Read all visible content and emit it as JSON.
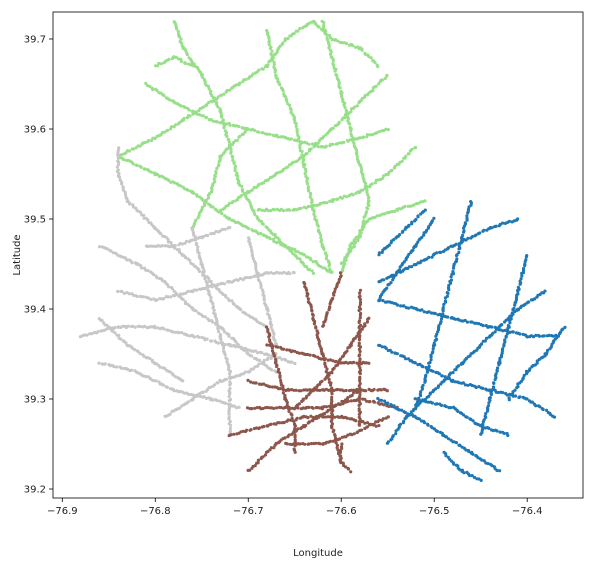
{
  "chart_data": {
    "type": "scatter",
    "title": "",
    "xlabel": "Longitude",
    "ylabel": "Latitude",
    "xlim": [
      -76.91,
      -76.34
    ],
    "ylim": [
      39.19,
      39.73
    ],
    "xticks": [
      -76.9,
      -76.8,
      -76.7,
      -76.6,
      -76.5,
      -76.4
    ],
    "xtick_labels": [
      "−76.9",
      "−76.8",
      "−76.7",
      "−76.6",
      "−76.5",
      "−76.4"
    ],
    "yticks": [
      39.2,
      39.3,
      39.4,
      39.5,
      39.6,
      39.7
    ],
    "ytick_labels": [
      "39.2",
      "39.3",
      "39.4",
      "39.5",
      "39.6",
      "39.7"
    ],
    "grid": false,
    "legend": "none",
    "series": [
      {
        "color": "#98df8a",
        "segments": [
          [
            [
              -76.84,
              39.57
            ],
            [
              -76.8,
              39.55
            ],
            [
              -76.76,
              39.53
            ],
            [
              -76.72,
              39.5
            ],
            [
              -76.68,
              39.48
            ],
            [
              -76.64,
              39.46
            ],
            [
              -76.61,
              39.44
            ]
          ],
          [
            [
              -76.84,
              39.57
            ],
            [
              -76.8,
              39.59
            ],
            [
              -76.77,
              39.61
            ],
            [
              -76.74,
              39.63
            ],
            [
              -76.71,
              39.65
            ],
            [
              -76.68,
              39.67
            ],
            [
              -76.66,
              39.7
            ],
            [
              -76.63,
              39.72
            ]
          ],
          [
            [
              -76.78,
              39.72
            ],
            [
              -76.77,
              39.69
            ],
            [
              -76.75,
              39.66
            ],
            [
              -76.73,
              39.62
            ],
            [
              -76.72,
              39.58
            ],
            [
              -76.71,
              39.54
            ],
            [
              -76.69,
              39.5
            ],
            [
              -76.66,
              39.47
            ],
            [
              -76.63,
              39.44
            ]
          ],
          [
            [
              -76.62,
              39.72
            ],
            [
              -76.61,
              39.68
            ],
            [
              -76.6,
              39.64
            ],
            [
              -76.59,
              39.6
            ],
            [
              -76.58,
              39.56
            ],
            [
              -76.57,
              39.52
            ],
            [
              -76.58,
              39.48
            ],
            [
              -76.6,
              39.45
            ]
          ],
          [
            [
              -76.68,
              39.71
            ],
            [
              -76.67,
              39.66
            ],
            [
              -76.65,
              39.61
            ],
            [
              -76.64,
              39.56
            ],
            [
              -76.63,
              39.51
            ],
            [
              -76.62,
              39.47
            ],
            [
              -76.61,
              39.44
            ]
          ],
          [
            [
              -76.55,
              39.66
            ],
            [
              -76.58,
              39.63
            ],
            [
              -76.61,
              39.6
            ],
            [
              -76.64,
              39.57
            ],
            [
              -76.67,
              39.55
            ],
            [
              -76.7,
              39.53
            ],
            [
              -76.73,
              39.51
            ]
          ],
          [
            [
              -76.51,
              39.52
            ],
            [
              -76.54,
              39.51
            ],
            [
              -76.57,
              39.5
            ],
            [
              -76.59,
              39.47
            ],
            [
              -76.6,
              39.44
            ]
          ],
          [
            [
              -76.52,
              39.58
            ],
            [
              -76.55,
              39.55
            ],
            [
              -76.58,
              39.53
            ],
            [
              -76.61,
              39.52
            ],
            [
              -76.65,
              39.51
            ],
            [
              -76.69,
              39.51
            ]
          ],
          [
            [
              -76.81,
              39.65
            ],
            [
              -76.78,
              39.63
            ],
            [
              -76.74,
              39.61
            ],
            [
              -76.7,
              39.6
            ],
            [
              -76.66,
              39.59
            ],
            [
              -76.62,
              39.58
            ],
            [
              -76.58,
              39.59
            ],
            [
              -76.55,
              39.6
            ]
          ],
          [
            [
              -76.76,
              39.49
            ],
            [
              -76.74,
              39.53
            ],
            [
              -76.73,
              39.57
            ],
            [
              -76.7,
              39.6
            ]
          ],
          [
            [
              -76.63,
              39.72
            ],
            [
              -76.61,
              39.7
            ],
            [
              -76.58,
              39.69
            ],
            [
              -76.56,
              39.67
            ]
          ],
          [
            [
              -76.8,
              39.67
            ],
            [
              -76.78,
              39.68
            ],
            [
              -76.76,
              39.67
            ]
          ]
        ]
      },
      {
        "color": "#c7c7c7",
        "segments": [
          [
            [
              -76.88,
              39.37
            ],
            [
              -76.84,
              39.38
            ],
            [
              -76.8,
              39.38
            ],
            [
              -76.76,
              39.37
            ],
            [
              -76.72,
              39.36
            ],
            [
              -76.68,
              39.35
            ],
            [
              -76.65,
              39.34
            ]
          ],
          [
            [
              -76.86,
              39.47
            ],
            [
              -76.82,
              39.45
            ],
            [
              -76.79,
              39.43
            ],
            [
              -76.76,
              39.4
            ],
            [
              -76.73,
              39.38
            ],
            [
              -76.7,
              39.35
            ],
            [
              -76.67,
              39.33
            ]
          ],
          [
            [
              -76.83,
              39.52
            ],
            [
              -76.8,
              39.49
            ],
            [
              -76.77,
              39.46
            ],
            [
              -76.74,
              39.43
            ],
            [
              -76.71,
              39.4
            ],
            [
              -76.68,
              39.38
            ]
          ],
          [
            [
              -76.86,
              39.34
            ],
            [
              -76.82,
              39.33
            ],
            [
              -76.78,
              39.31
            ],
            [
              -76.74,
              39.3
            ],
            [
              -76.71,
              39.29
            ]
          ],
          [
            [
              -76.79,
              39.28
            ],
            [
              -76.76,
              39.3
            ],
            [
              -76.73,
              39.32
            ],
            [
              -76.7,
              39.33
            ],
            [
              -76.67,
              39.35
            ]
          ],
          [
            [
              -76.84,
              39.42
            ],
            [
              -76.8,
              39.41
            ],
            [
              -76.76,
              39.42
            ],
            [
              -76.72,
              39.43
            ],
            [
              -76.68,
              39.44
            ],
            [
              -76.65,
              39.44
            ]
          ],
          [
            [
              -76.76,
              39.49
            ],
            [
              -76.75,
              39.45
            ],
            [
              -76.74,
              39.41
            ],
            [
              -76.73,
              39.37
            ],
            [
              -76.72,
              39.33
            ],
            [
              -76.72,
              39.29
            ],
            [
              -76.72,
              39.26
            ]
          ],
          [
            [
              -76.7,
              39.48
            ],
            [
              -76.69,
              39.44
            ],
            [
              -76.68,
              39.4
            ],
            [
              -76.67,
              39.36
            ]
          ],
          [
            [
              -76.84,
              39.58
            ],
            [
              -76.84,
              39.55
            ],
            [
              -76.83,
              39.52
            ]
          ],
          [
            [
              -76.81,
              39.47
            ],
            [
              -76.78,
              39.47
            ],
            [
              -76.75,
              39.48
            ],
            [
              -76.72,
              39.49
            ]
          ],
          [
            [
              -76.86,
              39.39
            ],
            [
              -76.83,
              39.36
            ],
            [
              -76.8,
              39.34
            ],
            [
              -76.77,
              39.32
            ]
          ]
        ]
      },
      {
        "color": "#8c564b",
        "segments": [
          [
            [
              -76.7,
              39.29
            ],
            [
              -76.66,
              39.29
            ],
            [
              -76.62,
              39.29
            ],
            [
              -76.58,
              39.3
            ],
            [
              -76.54,
              39.29
            ]
          ],
          [
            [
              -76.7,
              39.32
            ],
            [
              -76.66,
              39.31
            ],
            [
              -76.62,
              39.31
            ],
            [
              -76.58,
              39.31
            ],
            [
              -76.55,
              39.31
            ]
          ],
          [
            [
              -76.68,
              39.36
            ],
            [
              -76.64,
              39.35
            ],
            [
              -76.6,
              39.34
            ],
            [
              -76.57,
              39.34
            ]
          ],
          [
            [
              -76.72,
              39.26
            ],
            [
              -76.68,
              39.27
            ],
            [
              -76.64,
              39.28
            ],
            [
              -76.6,
              39.28
            ],
            [
              -76.56,
              39.27
            ]
          ],
          [
            [
              -76.64,
              39.43
            ],
            [
              -76.63,
              39.39
            ],
            [
              -76.62,
              39.35
            ],
            [
              -76.61,
              39.31
            ],
            [
              -76.61,
              39.27
            ],
            [
              -76.6,
              39.23
            ]
          ],
          [
            [
              -76.68,
              39.38
            ],
            [
              -76.67,
              39.34
            ],
            [
              -76.66,
              39.3
            ],
            [
              -76.65,
              39.27
            ],
            [
              -76.65,
              39.24
            ]
          ],
          [
            [
              -76.58,
              39.42
            ],
            [
              -76.58,
              39.38
            ],
            [
              -76.58,
              39.34
            ],
            [
              -76.58,
              39.3
            ],
            [
              -76.58,
              39.27
            ]
          ],
          [
            [
              -76.7,
              39.22
            ],
            [
              -76.67,
              39.25
            ],
            [
              -76.64,
              39.27
            ],
            [
              -76.61,
              39.29
            ],
            [
              -76.58,
              39.31
            ]
          ],
          [
            [
              -76.57,
              39.39
            ],
            [
              -76.59,
              39.36
            ],
            [
              -76.61,
              39.33
            ],
            [
              -76.63,
              39.31
            ],
            [
              -76.65,
              39.29
            ]
          ],
          [
            [
              -76.55,
              39.28
            ],
            [
              -76.59,
              39.26
            ],
            [
              -76.62,
              39.25
            ],
            [
              -76.66,
              39.25
            ]
          ],
          [
            [
              -76.6,
              39.25
            ],
            [
              -76.6,
              39.23
            ],
            [
              -76.59,
              39.22
            ]
          ],
          [
            [
              -76.6,
              39.44
            ],
            [
              -76.61,
              39.41
            ],
            [
              -76.62,
              39.38
            ]
          ]
        ]
      },
      {
        "color": "#1f77b4",
        "segments": [
          [
            [
              -76.56,
              39.41
            ],
            [
              -76.52,
              39.4
            ],
            [
              -76.48,
              39.39
            ],
            [
              -76.44,
              39.38
            ],
            [
              -76.4,
              39.37
            ],
            [
              -76.37,
              39.37
            ]
          ],
          [
            [
              -76.56,
              39.36
            ],
            [
              -76.52,
              39.34
            ],
            [
              -76.48,
              39.32
            ],
            [
              -76.44,
              39.31
            ],
            [
              -76.4,
              39.3
            ],
            [
              -76.37,
              39.28
            ]
          ],
          [
            [
              -76.56,
              39.3
            ],
            [
              -76.52,
              39.28
            ],
            [
              -76.49,
              39.26
            ],
            [
              -76.46,
              39.24
            ],
            [
              -76.43,
              39.22
            ]
          ],
          [
            [
              -76.56,
              39.43
            ],
            [
              -76.52,
              39.45
            ],
            [
              -76.48,
              39.47
            ],
            [
              -76.44,
              39.49
            ],
            [
              -76.41,
              39.5
            ]
          ],
          [
            [
              -76.56,
              39.46
            ],
            [
              -76.53,
              39.49
            ],
            [
              -76.51,
              39.51
            ]
          ],
          [
            [
              -76.46,
              39.52
            ],
            [
              -76.47,
              39.48
            ],
            [
              -76.48,
              39.44
            ],
            [
              -76.49,
              39.4
            ],
            [
              -76.5,
              39.36
            ],
            [
              -76.51,
              39.32
            ],
            [
              -76.52,
              39.29
            ]
          ],
          [
            [
              -76.4,
              39.46
            ],
            [
              -76.41,
              39.42
            ],
            [
              -76.42,
              39.38
            ],
            [
              -76.43,
              39.34
            ],
            [
              -76.44,
              39.3
            ],
            [
              -76.45,
              39.26
            ]
          ],
          [
            [
              -76.38,
              39.42
            ],
            [
              -76.41,
              39.4
            ],
            [
              -76.44,
              39.37
            ],
            [
              -76.47,
              39.34
            ],
            [
              -76.5,
              39.31
            ],
            [
              -76.53,
              39.28
            ],
            [
              -76.55,
              39.25
            ]
          ],
          [
            [
              -76.5,
              39.5
            ],
            [
              -76.52,
              39.47
            ],
            [
              -76.54,
              39.44
            ],
            [
              -76.56,
              39.41
            ]
          ],
          [
            [
              -76.36,
              39.38
            ],
            [
              -76.38,
              39.35
            ],
            [
              -76.4,
              39.33
            ],
            [
              -76.42,
              39.3
            ]
          ],
          [
            [
              -76.49,
              39.24
            ],
            [
              -76.47,
              39.22
            ],
            [
              -76.45,
              39.21
            ]
          ],
          [
            [
              -76.52,
              39.3
            ],
            [
              -76.48,
              39.29
            ],
            [
              -76.45,
              39.27
            ],
            [
              -76.42,
              39.26
            ]
          ]
        ]
      }
    ]
  }
}
